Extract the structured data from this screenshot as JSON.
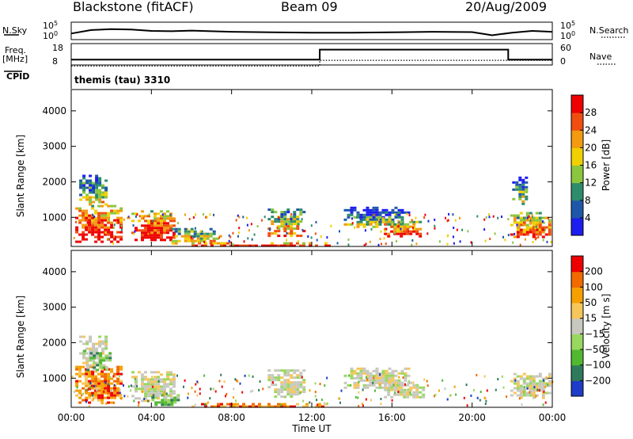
{
  "header": {
    "station": "Blackstone (fitACF)",
    "beam": "Beam 09",
    "date": "20/Aug/2009"
  },
  "left_labels": {
    "nsky": "N.Sky",
    "freq_top": "Freq.",
    "freq_unit": "[MHz]",
    "cpid": "CPID"
  },
  "right_labels": {
    "nsearch": "N.Search",
    "nave": "Nave"
  },
  "cpid_value": "themis (tau) 3310",
  "chart_data": [
    {
      "type": "line",
      "name_panel": "N.Sky / N.Search",
      "ylabel_left": "N.Sky",
      "ylabel_right": "N.Search",
      "left_ticks": [
        "10^5",
        "10^0"
      ],
      "right_ticks": [
        "10^5",
        "10^0"
      ],
      "x_hours": [
        0,
        1,
        2,
        3,
        4,
        5,
        6,
        8,
        10,
        12,
        14,
        16,
        18,
        20,
        21,
        22,
        23,
        24
      ],
      "y_level": [
        0.35,
        0.55,
        0.6,
        0.58,
        0.5,
        0.48,
        0.52,
        0.45,
        0.42,
        0.4,
        0.4,
        0.42,
        0.45,
        0.43,
        0.25,
        0.4,
        0.5,
        0.45
      ]
    },
    {
      "type": "line",
      "name_panel": "Freq / Nave",
      "ylabel_left": "Freq. [MHz]",
      "ylabel_right": "Nave",
      "left_ticks": [
        "18",
        "8"
      ],
      "right_ticks": [
        "60",
        "0"
      ],
      "series": [
        {
          "name": "Freq.",
          "x_hours": [
            0,
            12.4,
            12.4,
            21.8,
            21.8,
            24
          ],
          "y": [
            10.5,
            10.5,
            15.2,
            15.2,
            10.5,
            10.5
          ]
        },
        {
          "name": "Nave",
          "x_hours": [
            0,
            12.4,
            12.4,
            24
          ],
          "y": [
            7.5,
            7.5,
            10.2,
            10.2
          ]
        }
      ]
    },
    {
      "type": "heatmap",
      "name_panel": "Power",
      "xlabel": "",
      "ylabel": "Slant Range [km]",
      "xlim": [
        0,
        24
      ],
      "ylim": [
        180,
        4600
      ],
      "yticks": [
        "1000",
        "2000",
        "3000",
        "4000"
      ],
      "colorbar": {
        "label": "Power [dB]",
        "ticks": [
          "4",
          "8",
          "12",
          "16",
          "20",
          "24",
          "28"
        ],
        "colors": [
          "#1d1df0",
          "#1f57a8",
          "#2e8c6c",
          "#8cc63f",
          "#f0d000",
          "#f29a10",
          "#f04e10",
          "#ee0000"
        ]
      },
      "echo_regions": [
        {
          "t0": 0.2,
          "t1": 2.5,
          "r0": 300,
          "r1": 1350,
          "level": 0.85
        },
        {
          "t0": 0.4,
          "t1": 1.8,
          "r0": 1350,
          "r1": 2200,
          "level": 0.35
        },
        {
          "t0": 3.0,
          "t1": 5.2,
          "r0": 350,
          "r1": 1200,
          "level": 0.8
        },
        {
          "t0": 5.0,
          "t1": 7.4,
          "r0": 250,
          "r1": 700,
          "level": 0.5
        },
        {
          "t0": 6.0,
          "t1": 12.8,
          "r0": 190,
          "r1": 300,
          "level": 0.9
        },
        {
          "t0": 9.8,
          "t1": 11.6,
          "r0": 450,
          "r1": 1250,
          "level": 0.55
        },
        {
          "t0": 13.6,
          "t1": 16.8,
          "r0": 700,
          "r1": 1300,
          "level": 0.3
        },
        {
          "t0": 15.6,
          "t1": 17.6,
          "r0": 450,
          "r1": 900,
          "level": 0.75
        },
        {
          "t0": 21.9,
          "t1": 23.9,
          "r0": 450,
          "r1": 1150,
          "level": 0.65
        },
        {
          "t0": 22.0,
          "t1": 22.7,
          "r0": 1400,
          "r1": 2150,
          "level": 0.3
        }
      ]
    },
    {
      "type": "heatmap",
      "name_panel": "Velocity",
      "xlabel": "Time UT",
      "ylabel": "Slant Range [km]",
      "xlim": [
        0,
        24
      ],
      "ylim": [
        180,
        4600
      ],
      "xticks": [
        "00:00",
        "04:00",
        "08:00",
        "12:00",
        "16:00",
        "20:00",
        "00:00"
      ],
      "yticks": [
        "1000",
        "2000",
        "3000",
        "4000"
      ],
      "colorbar": {
        "label": "Velocity [m s-1]",
        "ticks": [
          "200",
          "100",
          "50",
          "15",
          "-15",
          "-50",
          "-100",
          "-200"
        ],
        "colors": [
          "#1d3cc8",
          "#2f7a5c",
          "#52b832",
          "#98d860",
          "#c8c8c0",
          "#f6c65a",
          "#f5a000",
          "#f06a00",
          "#ee0000"
        ]
      },
      "echo_regions": [
        {
          "t0": 0.2,
          "t1": 2.5,
          "r0": 300,
          "r1": 1350,
          "tone": "orange"
        },
        {
          "t0": 0.4,
          "t1": 1.8,
          "r0": 1350,
          "r1": 2200,
          "tone": "grey"
        },
        {
          "t0": 3.0,
          "t1": 5.2,
          "r0": 350,
          "r1": 1200,
          "tone": "grey"
        },
        {
          "t0": 4.0,
          "t1": 5.4,
          "r0": 220,
          "r1": 550,
          "tone": "green"
        },
        {
          "t0": 6.0,
          "t1": 12.8,
          "r0": 190,
          "r1": 300,
          "tone": "orange"
        },
        {
          "t0": 9.8,
          "t1": 11.6,
          "r0": 450,
          "r1": 1250,
          "tone": "grey"
        },
        {
          "t0": 13.6,
          "t1": 16.8,
          "r0": 700,
          "r1": 1300,
          "tone": "grey"
        },
        {
          "t0": 15.6,
          "t1": 17.6,
          "r0": 450,
          "r1": 900,
          "tone": "grey"
        },
        {
          "t0": 21.9,
          "t1": 23.9,
          "r0": 450,
          "r1": 1150,
          "tone": "grey"
        },
        {
          "t0": 0.6,
          "t1": 2.0,
          "r0": 1200,
          "r1": 1800,
          "tone": "green"
        }
      ]
    }
  ]
}
